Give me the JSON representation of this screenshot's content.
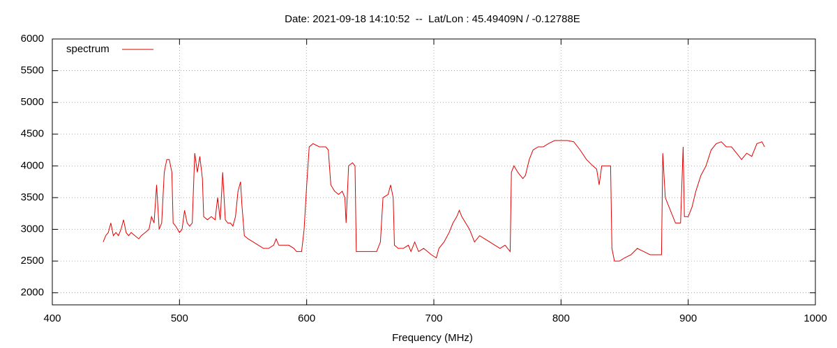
{
  "chart_data": {
    "type": "line",
    "title": "Date: 2021-09-18 14:10:52  --  Lat/Lon : 45.49409N / -0.12788E",
    "x_label": "Frequency (MHz)",
    "legend": "top-left",
    "grid": true,
    "xlim": [
      400,
      1000
    ],
    "xticks": [
      400,
      500,
      600,
      700,
      800,
      900,
      1000
    ],
    "ylim": [
      1810,
      6000
    ],
    "yticks": [
      2000,
      2500,
      3000,
      3500,
      4000,
      4500,
      5000,
      5500,
      6000
    ],
    "x": [
      440,
      442,
      444,
      446,
      448,
      450,
      452,
      454,
      456,
      458,
      460,
      462,
      465,
      468,
      470,
      473,
      476,
      478,
      480,
      482,
      484,
      486,
      488,
      490,
      492,
      494,
      495,
      497,
      500,
      502,
      504,
      506,
      508,
      510,
      512,
      514,
      516,
      518,
      519,
      522,
      525,
      528,
      530,
      532,
      534,
      536,
      538,
      540,
      542,
      544,
      546,
      548,
      549,
      551,
      554,
      558,
      562,
      566,
      570,
      574,
      576,
      578,
      582,
      586,
      590,
      592,
      596,
      598,
      600,
      602,
      605,
      610,
      615,
      617,
      619,
      622,
      625,
      628,
      630,
      631,
      633,
      636,
      638,
      639,
      642,
      645,
      650,
      655,
      658,
      660,
      664,
      666,
      668,
      669,
      672,
      676,
      680,
      682,
      685,
      688,
      692,
      695,
      698,
      702,
      704,
      708,
      712,
      715,
      718,
      720,
      722,
      725,
      728,
      732,
      736,
      740,
      744,
      748,
      752,
      756,
      760,
      761,
      763,
      766,
      770,
      772,
      775,
      778,
      782,
      786,
      790,
      795,
      800,
      805,
      810,
      815,
      820,
      825,
      828,
      830,
      832,
      836,
      839,
      840,
      842,
      846,
      850,
      855,
      860,
      865,
      870,
      875,
      879,
      880,
      882,
      886,
      890,
      894,
      896,
      897,
      900,
      903,
      906,
      910,
      914,
      918,
      922,
      926,
      930,
      934,
      938,
      942,
      946,
      950,
      954,
      958,
      960
    ],
    "series": [
      {
        "name": "spectrum",
        "color": "#e00000",
        "values": [
          2800,
          2900,
          2950,
          3100,
          2900,
          2950,
          2900,
          3000,
          3150,
          2950,
          2900,
          2950,
          2900,
          2850,
          2900,
          2950,
          3000,
          3200,
          3100,
          3700,
          3000,
          3100,
          3900,
          4100,
          4100,
          3900,
          3100,
          3050,
          2950,
          3000,
          3300,
          3100,
          3050,
          3100,
          4200,
          3900,
          4150,
          3800,
          3200,
          3150,
          3200,
          3150,
          3500,
          3150,
          3900,
          3150,
          3100,
          3100,
          3050,
          3200,
          3600,
          3750,
          3400,
          2900,
          2850,
          2800,
          2750,
          2700,
          2700,
          2750,
          2850,
          2750,
          2750,
          2750,
          2700,
          2650,
          2650,
          3000,
          3700,
          4300,
          4350,
          4300,
          4300,
          4250,
          3700,
          3600,
          3550,
          3600,
          3500,
          3100,
          4000,
          4050,
          4000,
          2650,
          2650,
          2650,
          2650,
          2650,
          2800,
          3500,
          3550,
          3700,
          3500,
          2750,
          2700,
          2700,
          2750,
          2650,
          2800,
          2650,
          2700,
          2650,
          2600,
          2550,
          2700,
          2800,
          2950,
          3100,
          3200,
          3300,
          3200,
          3100,
          3000,
          2800,
          2900,
          2850,
          2800,
          2750,
          2700,
          2750,
          2650,
          3900,
          4000,
          3900,
          3800,
          3850,
          4100,
          4250,
          4300,
          4300,
          4350,
          4400,
          4400,
          4400,
          4380,
          4250,
          4100,
          4000,
          3950,
          3700,
          4000,
          4000,
          4000,
          2700,
          2500,
          2500,
          2550,
          2600,
          2700,
          2650,
          2600,
          2600,
          2600,
          4200,
          3500,
          3300,
          3100,
          3100,
          4300,
          3200,
          3200,
          3350,
          3600,
          3850,
          4000,
          4250,
          4350,
          4380,
          4300,
          4300,
          4200,
          4100,
          4200,
          4150,
          4350,
          4380,
          4300
        ]
      }
    ]
  }
}
